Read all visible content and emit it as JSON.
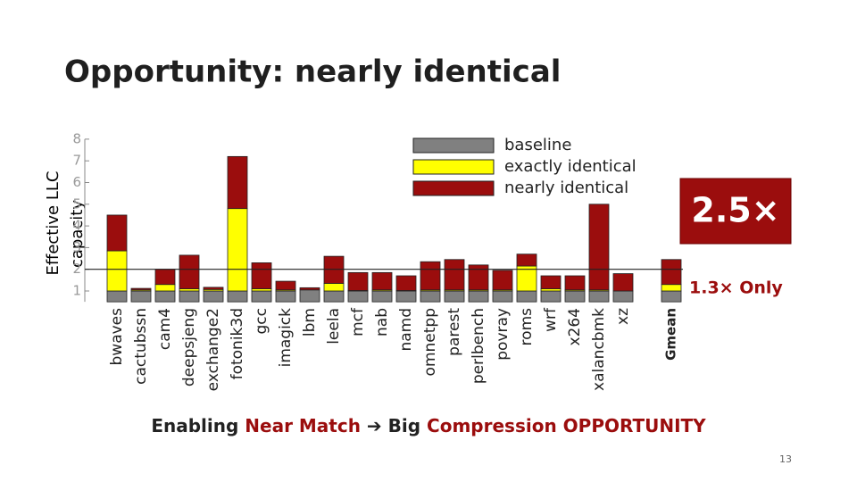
{
  "title": "Opportunity: nearly identical",
  "footer": [
    "Enabling ",
    "Near Match",
    " ➔ ",
    "Big ",
    "Compression OPPORTUNITY"
  ],
  "page_number": "13",
  "chart_data": {
    "type": "stacked_bar",
    "ylabel": [
      "Effective LLC",
      "capacity"
    ],
    "categories": [
      "bwaves",
      "cactubssn",
      "cam4",
      "deepsjeng",
      "exchange2",
      "fotonik3d",
      "gcc",
      "imagick",
      "lbm",
      "leela",
      "mcf",
      "nab",
      "namd",
      "omnetpp",
      "parest",
      "perlbench",
      "povray",
      "roms",
      "wrf",
      "x264",
      "xalancbmk",
      "xz",
      "Gmean"
    ],
    "series": [
      {
        "name": "baseline",
        "color": "#808080",
        "values": [
          1,
          1,
          1,
          1,
          1,
          1,
          1,
          1,
          1.05,
          1,
          1,
          1,
          1,
          1,
          1,
          1,
          1,
          1,
          1,
          1,
          1,
          1,
          1
        ]
      },
      {
        "name": "exactly identical",
        "color": "#ffff00",
        "values": [
          1.85,
          0.05,
          0.3,
          0.1,
          0.07,
          3.8,
          0.1,
          0.05,
          0,
          0.35,
          0.02,
          0.05,
          0.02,
          0.05,
          0.05,
          0.05,
          0.05,
          1.15,
          0.1,
          0.05,
          0.05,
          0,
          0.3
        ]
      },
      {
        "name": "nearly identical",
        "color": "#9b0d0d",
        "values": [
          1.65,
          0.07,
          0.7,
          1.55,
          0.1,
          2.4,
          1.2,
          0.4,
          0.1,
          1.25,
          0.83,
          0.8,
          0.68,
          1.3,
          1.4,
          1.15,
          0.9,
          0.55,
          0.6,
          0.65,
          3.95,
          0.8,
          1.15
        ]
      }
    ],
    "ylim": [
      0.5,
      8
    ],
    "yticks": [
      1,
      2,
      3,
      4,
      5,
      6,
      7,
      8
    ],
    "reference_line": 2,
    "annotations": [
      "2.5×",
      "1.3× Only"
    ]
  }
}
